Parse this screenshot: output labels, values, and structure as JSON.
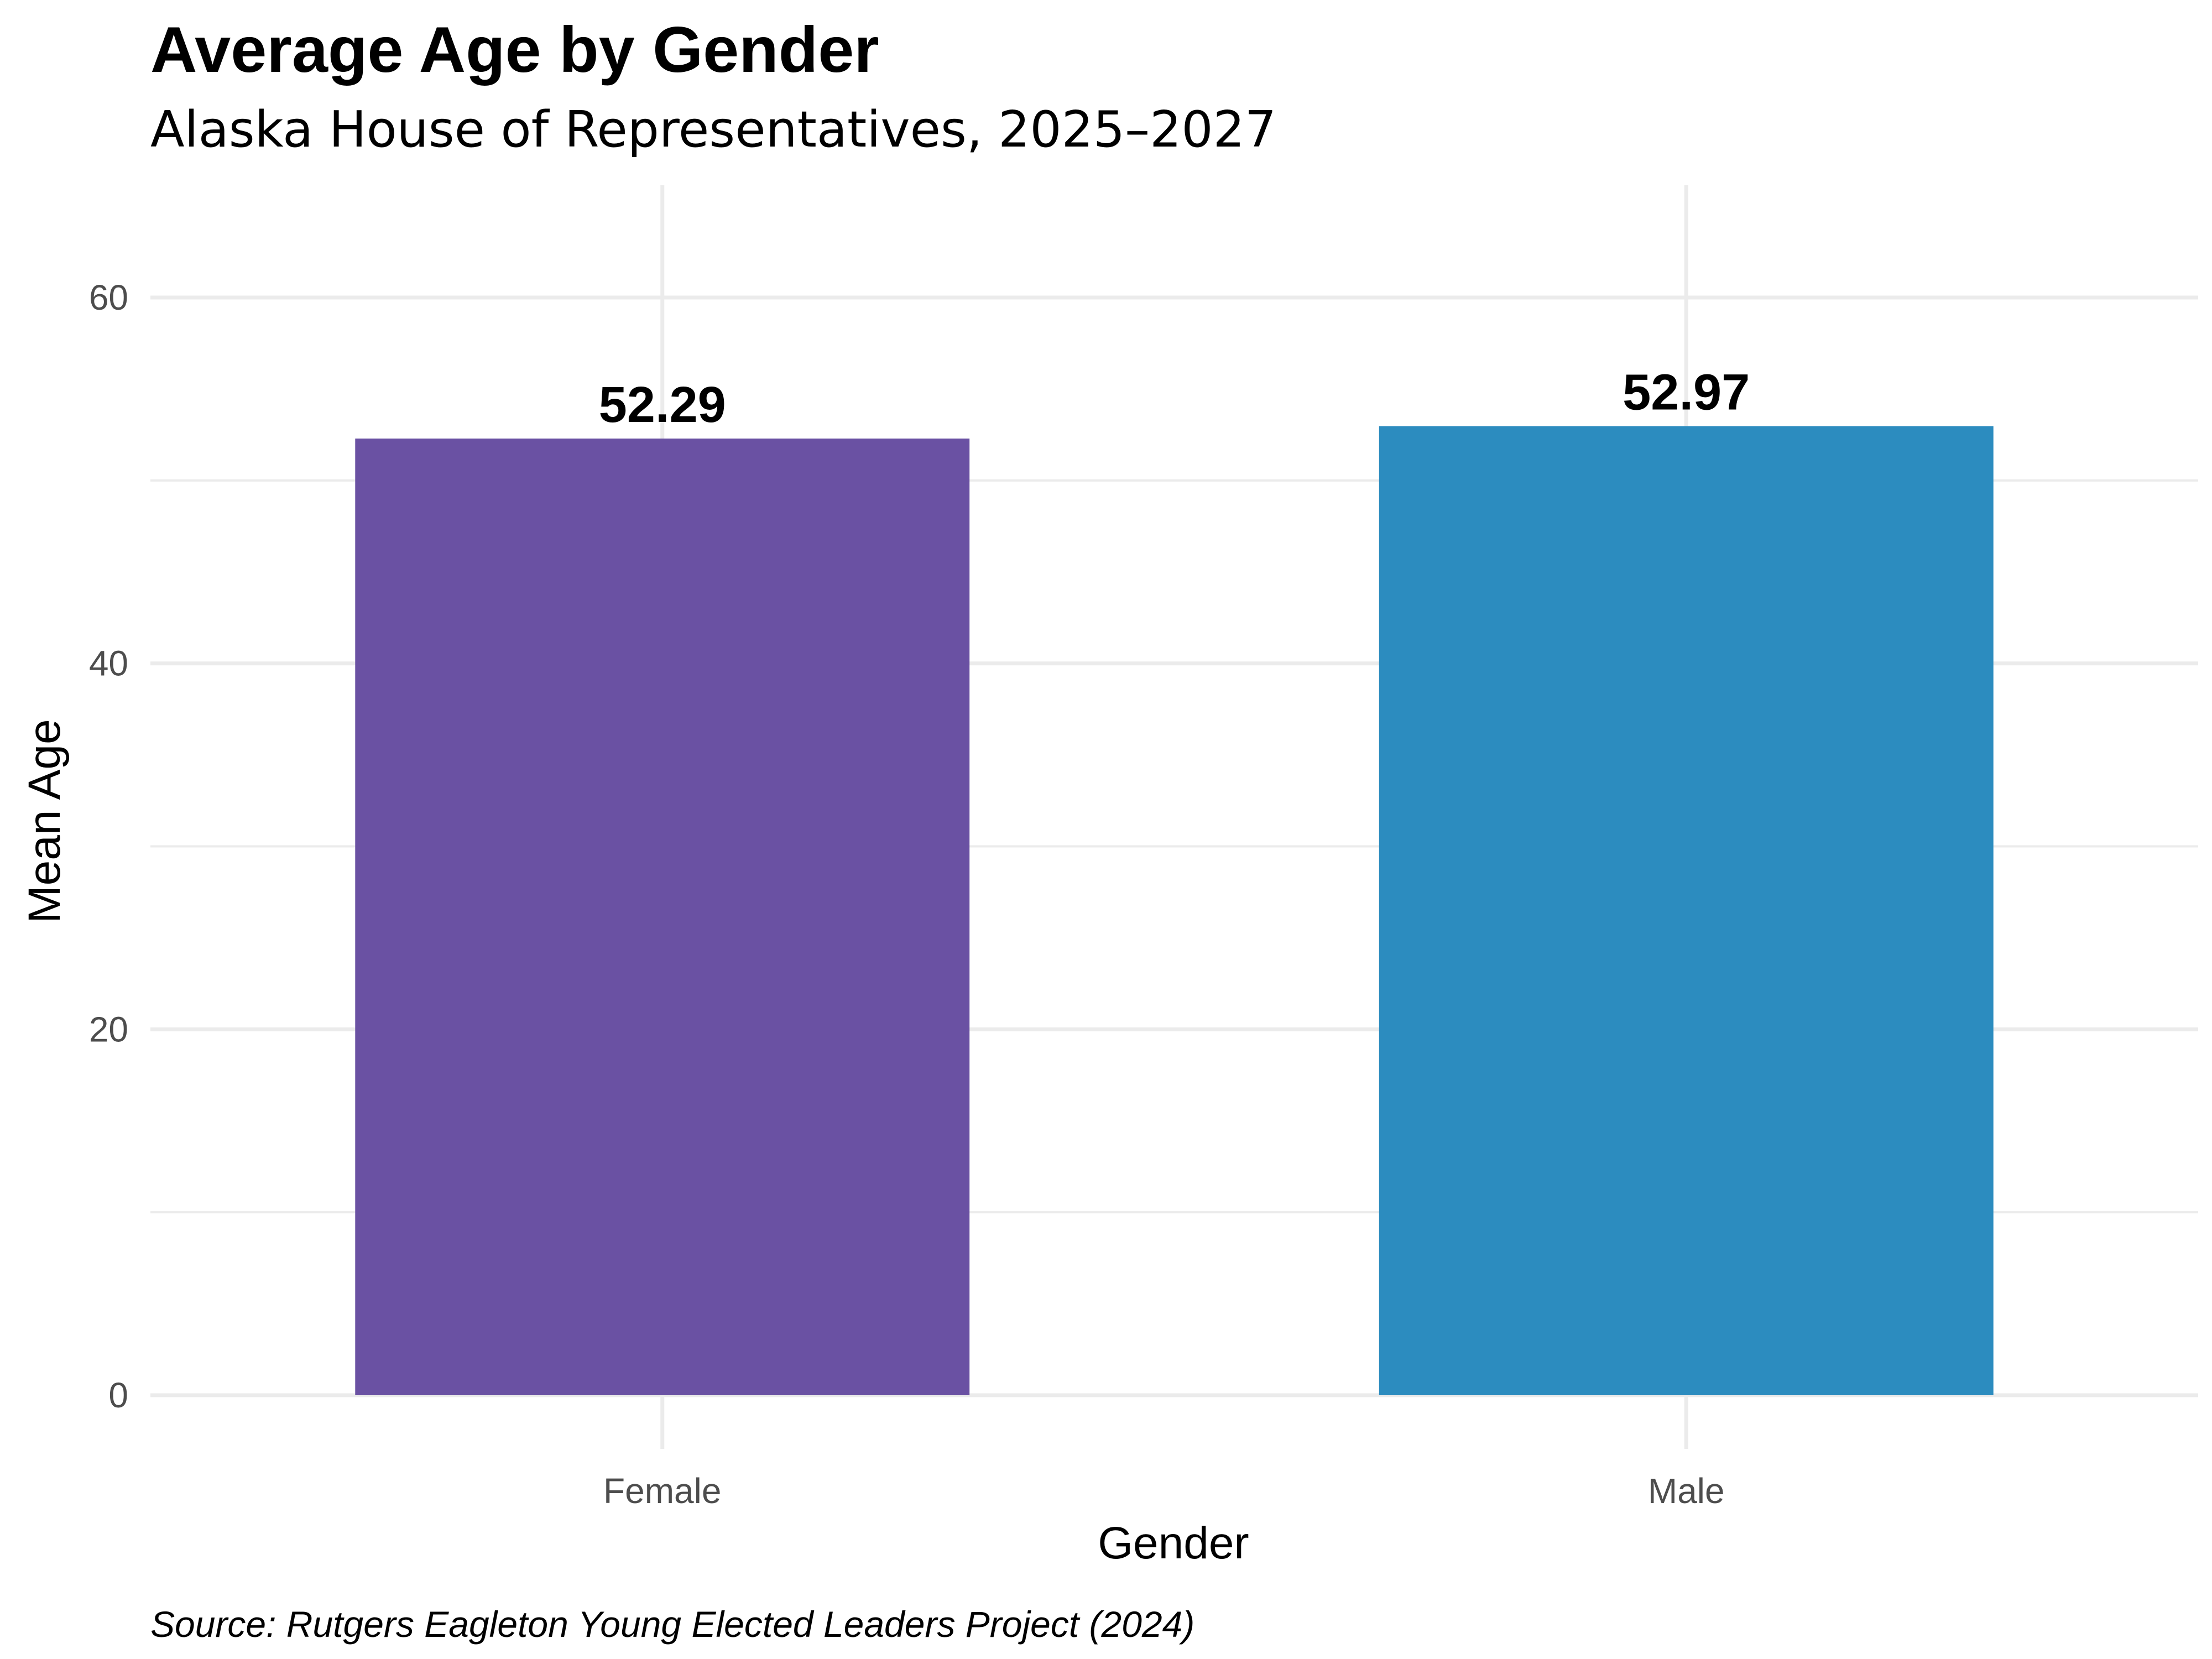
{
  "chart_data": {
    "type": "bar",
    "title": "Average Age by Gender",
    "subtitle": "Alaska House of Representatives, 2025–2027",
    "caption": "Source: Rutgers Eagleton Young Elected Leaders Project (2024)",
    "xlabel": "Gender",
    "ylabel": "Mean Age",
    "categories": [
      "Female",
      "Male"
    ],
    "values": [
      52.29,
      52.97
    ],
    "value_labels": [
      "52.29",
      "52.97"
    ],
    "colors": [
      "#6a51a3",
      "#2c8cbf"
    ],
    "ylim": [
      0,
      65
    ],
    "y_ticks": [
      0,
      20,
      40,
      60
    ],
    "y_tick_labels": [
      "0",
      "20",
      "40",
      "60"
    ],
    "grid": true,
    "legend": "none"
  }
}
